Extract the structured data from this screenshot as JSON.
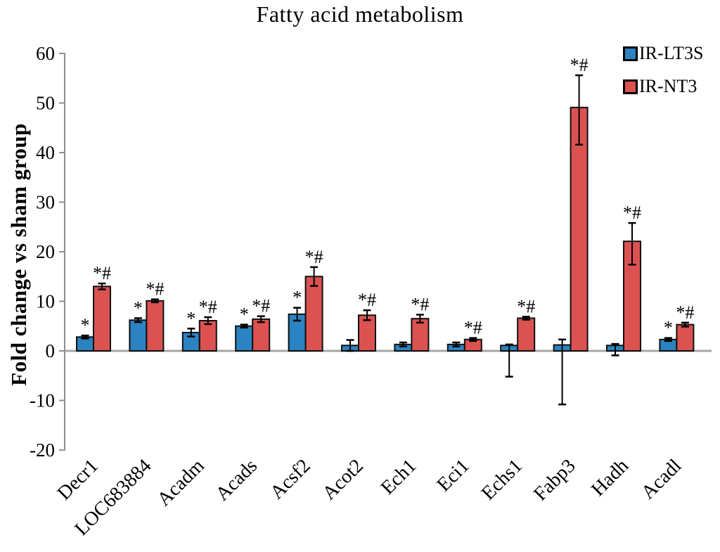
{
  "title": "Fatty acid metabolism",
  "colors": {
    "blue": "#2B83C1",
    "red": "#DB5251",
    "bar_border": "#101010",
    "axis": "#8F8F8F",
    "zero_line": "#A6A6A6",
    "text": "#000000"
  },
  "chart_data": {
    "type": "bar",
    "title": "Fatty acid metabolism",
    "ylabel": "Fold change vs sham group",
    "xlabel": "",
    "ylim": [
      -20,
      60
    ],
    "ytick_step": 10,
    "yticks": [
      60,
      50,
      40,
      30,
      20,
      10,
      0,
      -10,
      -20
    ],
    "grid": false,
    "legend_position": "top-right",
    "categories": [
      "Decr1",
      "LOC683884",
      "Acadm",
      "Acads",
      "Acsf2",
      "Acot2",
      "Ech1",
      "Eci1",
      "Echs1",
      "Fabp3",
      "Hadh",
      "Acadl"
    ],
    "series": [
      {
        "name": "IR-LT3S",
        "color": "#2B83C1",
        "values": [
          2.8,
          6.2,
          3.7,
          5.0,
          7.4,
          1.1,
          1.3,
          1.3,
          1.1,
          1.2,
          1.1,
          2.3
        ],
        "err_up": [
          0.3,
          0.4,
          0.8,
          0.3,
          1.3,
          1.1,
          0.4,
          0.4,
          0.2,
          1.1,
          0.3,
          0.3
        ],
        "err_down": [
          0.3,
          0.4,
          0.8,
          0.3,
          1.3,
          1.1,
          0.4,
          0.4,
          6.3,
          12.0,
          2.0,
          0.3
        ],
        "sig": [
          "*",
          "*",
          "*",
          "*",
          "*",
          "",
          "",
          "",
          "",
          "",
          "",
          "*"
        ]
      },
      {
        "name": "IR-NT3",
        "color": "#DB5251",
        "values": [
          13.0,
          10.1,
          6.1,
          6.4,
          15.0,
          7.2,
          6.5,
          2.3,
          6.6,
          49.1,
          22.1,
          5.3
        ],
        "err_up": [
          0.6,
          0.3,
          0.7,
          0.6,
          1.9,
          1.0,
          0.8,
          0.3,
          0.3,
          6.5,
          3.7,
          0.4
        ],
        "err_down": [
          0.6,
          0.3,
          0.7,
          0.6,
          1.9,
          1.0,
          0.8,
          0.3,
          0.3,
          7.5,
          4.7,
          0.4
        ],
        "sig": [
          "*#",
          "*#",
          "*#",
          "*#",
          "*#",
          "*#",
          "*#",
          "*#",
          "*#",
          "*#",
          "*#",
          "*#"
        ]
      }
    ]
  }
}
